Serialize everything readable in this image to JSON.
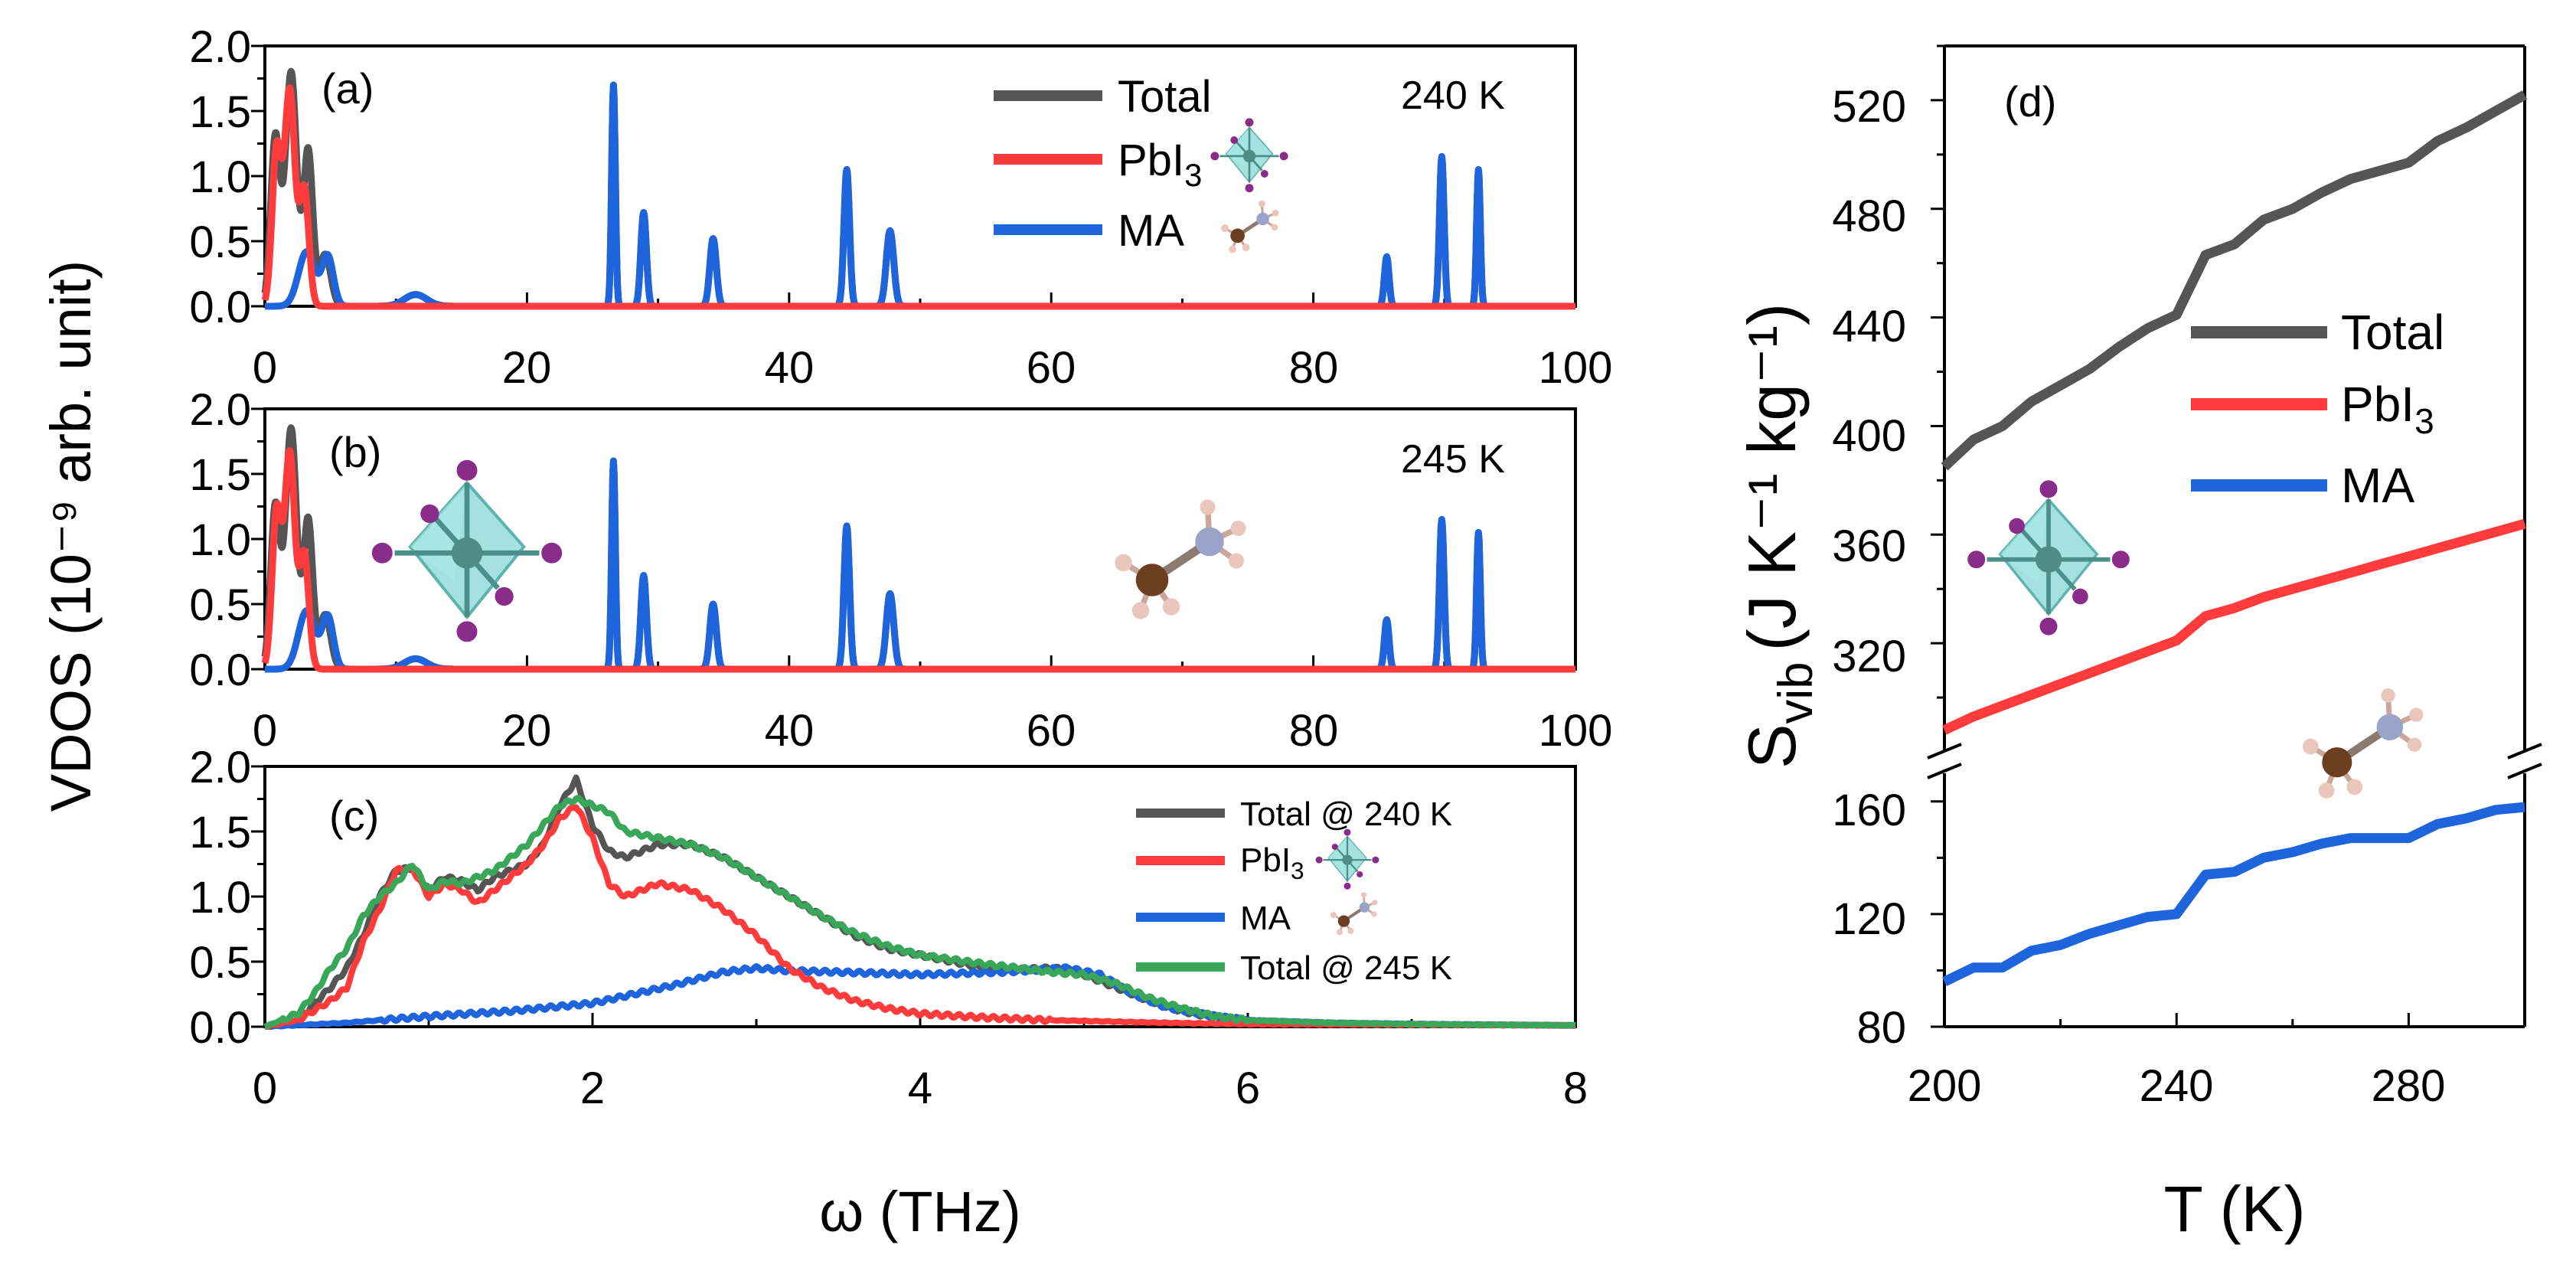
{
  "colors": {
    "total": "#555555",
    "pbi3": "#ff3b3b",
    "ma": "#1e64dc",
    "total245": "#3aa65a"
  },
  "axis_labels": {
    "y_left": "VDOS (10⁻⁹ arb. unit)",
    "x_left": "ω (THz)",
    "y_right": "S",
    "y_right_sub": "vib",
    "y_right_units": "(J K⁻¹ kg⁻¹)",
    "x_right": "T (K)"
  },
  "chart_data": [
    {
      "type": "line",
      "panel": "(a)",
      "annotation": "240 K",
      "xlabel": "ω (THz)",
      "ylabel": "VDOS (10⁻⁹ arb. unit)",
      "xlim": [
        0,
        100
      ],
      "ylim": [
        0,
        2.0
      ],
      "x_ticks": [
        "0",
        "20",
        "40",
        "60",
        "80",
        "100"
      ],
      "y_ticks": [
        "0.0",
        "0.5",
        "1.0",
        "1.5",
        "2.0"
      ],
      "legend": [
        "Total",
        "PbI3",
        "MA"
      ],
      "legend_labels": {
        "total": "Total",
        "pbi3_main": "PbI",
        "pbi3_sub": "3",
        "ma": "MA"
      },
      "series": [
        {
          "name": "Total",
          "peaks": [
            [
              0.8,
              1.3,
              0.5
            ],
            [
              2.0,
              1.8,
              0.6
            ],
            [
              3.3,
              1.2,
              0.5
            ],
            [
              4.6,
              0.4,
              0.6
            ],
            [
              11.5,
              0.09,
              1.2
            ],
            [
              26.6,
              1.7,
              0.2
            ],
            [
              28.9,
              0.72,
              0.3
            ],
            [
              34.2,
              0.52,
              0.35
            ],
            [
              44.4,
              1.05,
              0.3
            ],
            [
              47.7,
              0.58,
              0.4
            ],
            [
              85.6,
              0.38,
              0.25
            ],
            [
              89.8,
              1.15,
              0.25
            ],
            [
              92.6,
              1.05,
              0.2
            ]
          ]
        },
        {
          "name": "PbI3",
          "peaks": [
            [
              0.9,
              1.2,
              0.5
            ],
            [
              1.9,
              1.65,
              0.55
            ],
            [
              3.0,
              0.9,
              0.5
            ]
          ]
        },
        {
          "name": "MA",
          "peaks": [
            [
              3.2,
              0.42,
              0.9
            ],
            [
              4.8,
              0.38,
              0.6
            ],
            [
              11.5,
              0.09,
              1.2
            ],
            [
              26.6,
              1.7,
              0.2
            ],
            [
              28.9,
              0.72,
              0.3
            ],
            [
              34.2,
              0.52,
              0.35
            ],
            [
              44.4,
              1.05,
              0.3
            ],
            [
              47.7,
              0.58,
              0.4
            ],
            [
              85.6,
              0.38,
              0.25
            ],
            [
              89.8,
              1.15,
              0.25
            ],
            [
              92.6,
              1.05,
              0.2
            ]
          ]
        }
      ]
    },
    {
      "type": "line",
      "panel": "(b)",
      "annotation": "245 K",
      "xlabel": "ω (THz)",
      "ylabel": "VDOS (10⁻⁹ arb. unit)",
      "xlim": [
        0,
        100
      ],
      "ylim": [
        0,
        2.0
      ],
      "x_ticks": [
        "0",
        "20",
        "40",
        "60",
        "80",
        "100"
      ],
      "y_ticks": [
        "0.0",
        "0.5",
        "1.0",
        "1.5",
        "2.0"
      ],
      "series": [
        {
          "name": "Total",
          "peaks": [
            [
              0.8,
              1.25,
              0.5
            ],
            [
              2.0,
              1.85,
              0.6
            ],
            [
              3.3,
              1.15,
              0.5
            ],
            [
              4.6,
              0.42,
              0.6
            ],
            [
              11.5,
              0.08,
              1.2
            ],
            [
              26.6,
              1.6,
              0.2
            ],
            [
              28.9,
              0.72,
              0.3
            ],
            [
              34.2,
              0.5,
              0.35
            ],
            [
              44.4,
              1.1,
              0.3
            ],
            [
              47.7,
              0.58,
              0.4
            ],
            [
              85.6,
              0.38,
              0.25
            ],
            [
              89.8,
              1.15,
              0.25
            ],
            [
              92.6,
              1.05,
              0.2
            ]
          ]
        },
        {
          "name": "PbI3",
          "peaks": [
            [
              0.9,
              1.2,
              0.5
            ],
            [
              1.9,
              1.65,
              0.55
            ],
            [
              3.0,
              0.88,
              0.5
            ]
          ]
        },
        {
          "name": "MA",
          "peaks": [
            [
              3.2,
              0.45,
              0.9
            ],
            [
              4.8,
              0.4,
              0.6
            ],
            [
              11.5,
              0.08,
              1.2
            ],
            [
              26.6,
              1.6,
              0.2
            ],
            [
              28.9,
              0.72,
              0.3
            ],
            [
              34.2,
              0.5,
              0.35
            ],
            [
              44.4,
              1.1,
              0.3
            ],
            [
              47.7,
              0.58,
              0.4
            ],
            [
              85.6,
              0.38,
              0.25
            ],
            [
              89.8,
              1.15,
              0.25
            ],
            [
              92.6,
              1.05,
              0.2
            ]
          ]
        }
      ]
    },
    {
      "type": "line",
      "panel": "(c)",
      "xlabel": "ω (THz)",
      "ylabel": "VDOS (10⁻⁹ arb. unit)",
      "xlim": [
        0,
        8
      ],
      "ylim": [
        0,
        2.0
      ],
      "x_ticks": [
        "0",
        "2",
        "4",
        "6",
        "8"
      ],
      "y_ticks": [
        "0.0",
        "0.5",
        "1.0",
        "1.5",
        "2.0"
      ],
      "legend": [
        "Total @ 240 K",
        "PbI3",
        "MA",
        "Total @ 245 K"
      ],
      "legend_labels": {
        "total240": "Total @ 240 K",
        "pbi3_main": "PbI",
        "pbi3_sub": "3",
        "ma": "MA",
        "total245": "Total @ 245 K"
      },
      "series": [
        {
          "name": "Total @ 240 K",
          "x": [
            0,
            0.2,
            0.4,
            0.5,
            0.6,
            0.7,
            0.8,
            0.9,
            1.0,
            1.1,
            1.2,
            1.3,
            1.4,
            1.5,
            1.6,
            1.7,
            1.8,
            1.9,
            2.0,
            2.1,
            2.2,
            2.3,
            2.4,
            2.6,
            2.8,
            3.0,
            3.2,
            3.4,
            3.6,
            3.8,
            4.0,
            4.2,
            4.4,
            4.6,
            4.8,
            4.9,
            5.0,
            5.2,
            5.4,
            5.6,
            5.8,
            6.0,
            6.5,
            7.0,
            8.0
          ],
          "y": [
            0,
            0.05,
            0.3,
            0.45,
            0.7,
            1.0,
            1.2,
            1.22,
            1.05,
            1.15,
            1.12,
            1.05,
            1.15,
            1.2,
            1.25,
            1.4,
            1.7,
            1.9,
            1.55,
            1.35,
            1.3,
            1.35,
            1.4,
            1.4,
            1.3,
            1.15,
            1.0,
            0.85,
            0.7,
            0.6,
            0.55,
            0.5,
            0.45,
            0.44,
            0.45,
            0.44,
            0.4,
            0.3,
            0.2,
            0.12,
            0.07,
            0.05,
            0.03,
            0.02,
            0.01
          ]
        },
        {
          "name": "PbI3",
          "x": [
            0,
            0.2,
            0.4,
            0.5,
            0.6,
            0.7,
            0.8,
            0.9,
            1.0,
            1.1,
            1.2,
            1.3,
            1.4,
            1.5,
            1.6,
            1.7,
            1.8,
            1.9,
            2.0,
            2.1,
            2.2,
            2.4,
            2.6,
            2.8,
            3.0,
            3.2,
            3.4,
            3.6,
            3.8,
            4.0,
            4.4,
            4.8,
            5.5,
            6.0,
            8.0
          ],
          "y": [
            0,
            0.05,
            0.2,
            0.3,
            0.65,
            0.9,
            1.2,
            1.22,
            1.0,
            1.1,
            1.05,
            0.95,
            1.05,
            1.15,
            1.25,
            1.4,
            1.6,
            1.7,
            1.45,
            1.1,
            1.0,
            1.1,
            1.05,
            0.9,
            0.7,
            0.45,
            0.3,
            0.2,
            0.14,
            0.1,
            0.07,
            0.05,
            0.03,
            0.02,
            0.01
          ]
        },
        {
          "name": "MA",
          "x": [
            0,
            0.5,
            1.0,
            1.5,
            2.0,
            2.5,
            2.8,
            3.0,
            3.2,
            3.5,
            4.0,
            4.5,
            4.9,
            5.1,
            5.3,
            5.5,
            5.8,
            6.0,
            6.5,
            7.0,
            8.0
          ],
          "y": [
            0,
            0.03,
            0.08,
            0.12,
            0.18,
            0.32,
            0.42,
            0.45,
            0.43,
            0.42,
            0.4,
            0.42,
            0.45,
            0.4,
            0.25,
            0.15,
            0.08,
            0.05,
            0.03,
            0.02,
            0.01
          ]
        },
        {
          "name": "Total @ 245 K",
          "x": [
            0,
            0.2,
            0.3,
            0.4,
            0.5,
            0.6,
            0.7,
            0.8,
            0.9,
            1.0,
            1.1,
            1.2,
            1.3,
            1.4,
            1.5,
            1.6,
            1.7,
            1.8,
            1.9,
            2.0,
            2.1,
            2.2,
            2.4,
            2.6,
            2.8,
            3.0,
            3.2,
            3.4,
            3.6,
            3.8,
            4.0,
            4.4,
            4.8,
            5.0,
            5.2,
            5.4,
            5.6,
            5.8,
            6.0,
            6.5,
            7.0,
            8.0
          ],
          "y": [
            0,
            0.1,
            0.25,
            0.45,
            0.6,
            0.85,
            1.0,
            1.1,
            1.25,
            1.05,
            1.12,
            1.1,
            1.15,
            1.2,
            1.3,
            1.4,
            1.55,
            1.7,
            1.75,
            1.7,
            1.65,
            1.5,
            1.45,
            1.4,
            1.3,
            1.15,
            1.0,
            0.85,
            0.72,
            0.62,
            0.55,
            0.48,
            0.42,
            0.4,
            0.33,
            0.22,
            0.14,
            0.08,
            0.05,
            0.03,
            0.02,
            0.01
          ]
        }
      ]
    },
    {
      "type": "line",
      "panel": "(d)",
      "xlabel": "T (K)",
      "ylabel": "Svib (J K⁻¹ kg⁻¹)",
      "xlim": [
        200,
        300
      ],
      "y_upper_lim": [
        280,
        540
      ],
      "y_lower_lim": [
        80,
        170
      ],
      "x_ticks": [
        "200",
        "240",
        "280"
      ],
      "y_ticks_upper": [
        "320",
        "360",
        "400",
        "440",
        "480",
        "520"
      ],
      "y_ticks_lower": [
        "80",
        "120",
        "160"
      ],
      "legend": [
        "Total",
        "PbI3",
        "MA"
      ],
      "legend_labels": {
        "total": "Total",
        "pbi3_main": "PbI",
        "pbi3_sub": "3",
        "ma": "MA"
      },
      "series": [
        {
          "name": "Total",
          "x": [
            200,
            205,
            210,
            215,
            220,
            225,
            230,
            235,
            240,
            245,
            250,
            255,
            260,
            265,
            270,
            275,
            280,
            285,
            290,
            295,
            300
          ],
          "y": [
            385,
            395,
            400,
            409,
            415,
            421,
            429,
            436,
            441,
            463,
            467,
            476,
            480,
            486,
            491,
            494,
            497,
            505,
            510,
            516,
            522
          ]
        },
        {
          "name": "PbI3",
          "x": [
            200,
            205,
            210,
            215,
            220,
            225,
            230,
            235,
            240,
            245,
            250,
            255,
            260,
            265,
            270,
            275,
            280,
            285,
            290,
            295,
            300
          ],
          "y": [
            288,
            293,
            297,
            301,
            305,
            309,
            313,
            317,
            321,
            330,
            333,
            337,
            340,
            343,
            346,
            349,
            352,
            355,
            358,
            361,
            364
          ]
        },
        {
          "name": "MA",
          "x": [
            200,
            205,
            210,
            215,
            220,
            225,
            230,
            235,
            240,
            245,
            250,
            255,
            260,
            265,
            270,
            275,
            280,
            285,
            290,
            295,
            300
          ],
          "y": [
            96,
            101,
            101,
            107,
            109,
            113,
            116,
            119,
            120,
            134,
            135,
            140,
            142,
            145,
            147,
            147,
            147,
            152,
            154,
            157,
            158
          ]
        }
      ]
    }
  ]
}
